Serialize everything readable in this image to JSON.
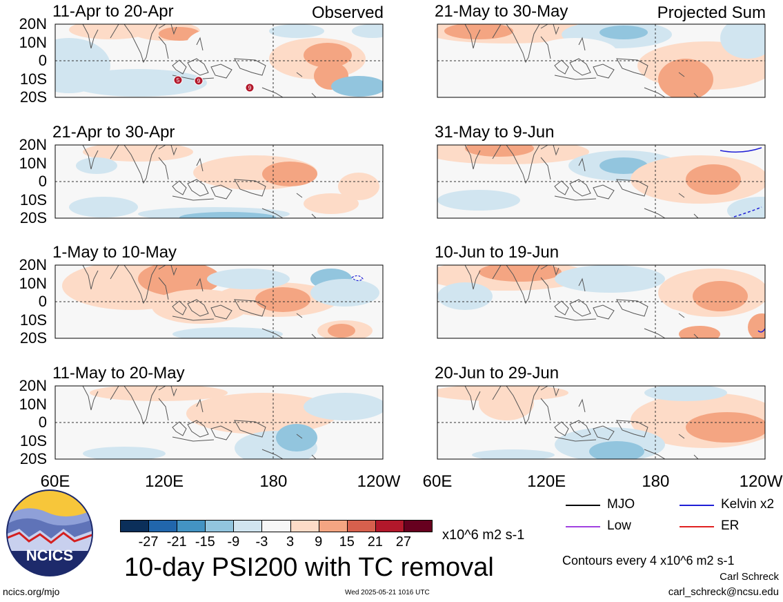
{
  "chart_data": {
    "type": "heatmap",
    "title": "10-day PSI200 with TC removal",
    "units": "x10^6 m2 s-1",
    "x_ticks": [
      "60E",
      "120E",
      "180",
      "120W"
    ],
    "y_ticks": [
      "20N",
      "10N",
      "0",
      "10S",
      "20S"
    ],
    "colorbar_labels": [
      "-27",
      "-21",
      "-15",
      "-9",
      "-3",
      "3",
      "9",
      "15",
      "21",
      "27"
    ],
    "panels": [
      {
        "period": "11-Apr to 20-Apr",
        "tag": "Observed",
        "tc_markers": [
          "5",
          "9",
          "9"
        ]
      },
      {
        "period": "21-Apr to 30-Apr"
      },
      {
        "period": "1-May to 10-May"
      },
      {
        "period": "11-May to 20-May"
      },
      {
        "period": "21-May to 30-May",
        "tag": "Projected Sum"
      },
      {
        "period": "31-May to 9-Jun"
      },
      {
        "period": "10-Jun to 19-Jun"
      },
      {
        "period": "20-Jun to 29-Jun"
      }
    ]
  },
  "colorbar_colors": [
    "#0b2f5a",
    "#2166ac",
    "#4393c3",
    "#92c5de",
    "#d1e5f0",
    "#f7f7f7",
    "#fddbc7",
    "#f4a582",
    "#d6604d",
    "#b2182b",
    "#67001f"
  ],
  "legend": [
    {
      "label": "MJO",
      "color": "#000000"
    },
    {
      "label": "Kelvin x2",
      "color": "#1f1fd6"
    },
    {
      "label": "Low",
      "color": "#a040e0"
    },
    {
      "label": "ER",
      "color": "#e02020"
    }
  ],
  "contour_note": "Contours every 4 x10^6 m2 s-1",
  "author": "Carl Schreck",
  "email": "carl_schreck@ncsu.edu",
  "site": "ncics.org/mjo",
  "timestamp": "Wed 2025-05-21 1016 UTC",
  "logo_text": "NCICS"
}
